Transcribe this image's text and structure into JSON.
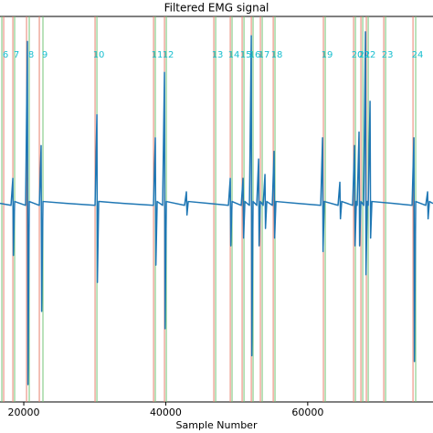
{
  "chart_data": {
    "type": "line",
    "title": "Filtered EMG signal",
    "x_label": "Sample Number",
    "xlim": [
      16650,
      77650
    ],
    "ylim": [
      -1,
      1
    ],
    "xticks": [
      20000,
      40000,
      60000
    ],
    "color": "#1f77b4",
    "x": [
      16650,
      18200,
      18460,
      18530,
      18710,
      20260,
      20510,
      20590,
      20770,
      22190,
      22440,
      22520,
      22700,
      26000,
      30040,
      30300,
      30370,
      30550,
      34000,
      38270,
      38530,
      38610,
      38790,
      39560,
      39820,
      39900,
      40080,
      42650,
      42910,
      42990,
      43170,
      46000,
      48830,
      49090,
      49160,
      49340,
      50630,
      50890,
      50970,
      51150,
      51790,
      52050,
      52120,
      52300,
      52820,
      53080,
      53150,
      53330,
      53720,
      53980,
      54050,
      54230,
      55010,
      55260,
      55340,
      55520,
      58500,
      61830,
      62090,
      62160,
      62340,
      64270,
      64530,
      64610,
      64790,
      66330,
      66590,
      66670,
      66850,
      66970,
      67230,
      67310,
      67490,
      67880,
      68130,
      68210,
      68390,
      68520,
      68780,
      68860,
      69040,
      72000,
      74700,
      74960,
      75030,
      75210,
      76630,
      76890,
      76960,
      77140,
      77650
    ],
    "values": [
      0.03,
      0.02,
      0.16,
      -0.24,
      0.04,
      0.02,
      0.87,
      -0.91,
      0.04,
      0.02,
      0.33,
      -0.53,
      0.04,
      0.03,
      0.02,
      0.49,
      -0.38,
      0.04,
      0.03,
      0.02,
      0.37,
      -0.29,
      0.04,
      0.02,
      0.71,
      -0.62,
      0.04,
      0.02,
      0.09,
      -0.03,
      0.04,
      0.03,
      0.02,
      0.16,
      -0.19,
      0.04,
      0.02,
      0.16,
      -0.15,
      0.04,
      0.02,
      0.9,
      -0.76,
      0.04,
      0.02,
      0.26,
      -0.19,
      0.04,
      0.02,
      0.18,
      -0.1,
      0.04,
      0.02,
      0.3,
      -0.15,
      0.04,
      0.03,
      0.02,
      0.37,
      -0.22,
      0.04,
      0.02,
      0.14,
      -0.05,
      0.04,
      0.02,
      0.33,
      -0.19,
      0.04,
      0.02,
      0.4,
      -0.19,
      0.04,
      0.02,
      0.92,
      -0.34,
      0.04,
      0.02,
      0.56,
      -0.15,
      0.04,
      0.03,
      0.02,
      0.37,
      -0.79,
      0.04,
      0.02,
      0.09,
      -0.05,
      0.04,
      0.03
    ],
    "marker_colors": {
      "red": "#e8806e",
      "green": "#74c476",
      "label": "#17becf"
    },
    "markers": [
      {
        "label": "6",
        "red": 17170,
        "green": 16910
      },
      {
        "label": "7",
        "red": 18460,
        "green": 18710
      },
      {
        "label": "8",
        "red": 20390,
        "green": 20770
      },
      {
        "label": "9",
        "red": 22190,
        "green": 22700
      },
      {
        "label": "10",
        "red": 30040,
        "green": 30300
      },
      {
        "label": "11",
        "red": 38280,
        "green": 38530
      },
      {
        "label": "12",
        "red": 39820,
        "green": 40080
      },
      {
        "label": "13",
        "red": 46770,
        "green": 47030
      },
      {
        "label": "14",
        "red": 49090,
        "green": 49340
      },
      {
        "label": "15",
        "red": 50760,
        "green": 51020
      },
      {
        "label": "16",
        "red": 52050,
        "green": 52300
      },
      {
        "label": "17",
        "red": 53330,
        "green": 53590
      },
      {
        "label": "18",
        "red": 55140,
        "green": 55390
      },
      {
        "label": "19",
        "red": 62210,
        "green": 62470
      },
      {
        "label": "20",
        "red": 66460,
        "green": 66720
      },
      {
        "label": "21",
        "red": 67490,
        "green": 67750
      },
      {
        "label": "22",
        "red": 68260,
        "green": 68520
      },
      {
        "label": "23",
        "red": 70710,
        "green": 70970
      },
      {
        "label": "24",
        "red": 74830,
        "green": 75210
      }
    ]
  }
}
